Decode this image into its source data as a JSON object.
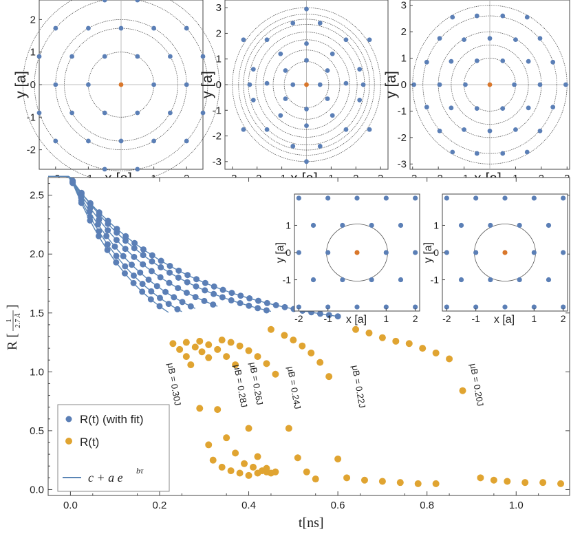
{
  "colors": {
    "blue": "#5b7fb6",
    "orange": "#e0a431",
    "red": "#d9772b",
    "circle": "#555555",
    "frame": "#444444",
    "axis": "#aaaaaa",
    "line": "#5a85b5"
  },
  "chart_data": [
    {
      "id": "top1",
      "type": "scatter",
      "xlabel": "x [a]",
      "ylabel": "y [a]",
      "xlim": [
        -2.5,
        2.5
      ],
      "ylim": [
        -2.6,
        2.6
      ],
      "xticks": [
        "-2",
        "-1",
        "1",
        "2"
      ],
      "yticks": [
        "2",
        "1",
        "0",
        "-1",
        "-2"
      ],
      "xtick_values": [
        -2,
        -1,
        1,
        2
      ],
      "ytick_values": [
        2,
        1,
        0,
        -1,
        -2
      ],
      "rings": [
        1,
        1.732,
        2,
        2.646,
        3
      ],
      "points": [
        [
          0,
          0
        ],
        [
          1,
          0
        ],
        [
          0.5,
          0.866
        ],
        [
          -0.5,
          0.866
        ],
        [
          -1,
          0
        ],
        [
          -0.5,
          -0.866
        ],
        [
          0.5,
          -0.866
        ],
        [
          1.5,
          0.866
        ],
        [
          0,
          1.732
        ],
        [
          -1.5,
          0.866
        ],
        [
          -1.5,
          -0.866
        ],
        [
          0,
          -1.732
        ],
        [
          1.5,
          -0.866
        ],
        [
          2,
          0
        ],
        [
          1,
          1.732
        ],
        [
          -1,
          1.732
        ],
        [
          -2,
          0
        ],
        [
          -1,
          -1.732
        ],
        [
          1,
          -1.732
        ],
        [
          2.5,
          0.866
        ],
        [
          2,
          1.732
        ],
        [
          0.5,
          2.598
        ],
        [
          -0.5,
          2.598
        ],
        [
          -2,
          1.732
        ],
        [
          -2.5,
          0.866
        ],
        [
          -2.5,
          -0.866
        ],
        [
          -2,
          -1.732
        ],
        [
          -0.5,
          -2.598
        ],
        [
          0.5,
          -2.598
        ],
        [
          2,
          -1.732
        ],
        [
          2.5,
          -0.866
        ]
      ]
    },
    {
      "id": "top2",
      "type": "scatter",
      "xlabel": "x [a]",
      "ylabel": "y [a]",
      "xlim": [
        -3.3,
        3.3
      ],
      "ylim": [
        -3.3,
        3.3
      ],
      "xticks": [
        "-3",
        "-2",
        "-1",
        "1",
        "2",
        "3"
      ],
      "yticks": [
        "3",
        "2",
        "1",
        "0",
        "-1",
        "-2",
        "-3"
      ],
      "xtick_values": [
        -3,
        -2,
        -1,
        1,
        2,
        3
      ],
      "ytick_values": [
        3,
        2,
        1,
        0,
        -1,
        -2,
        -3
      ],
      "rings": [
        0.9,
        1.35,
        1.75,
        2.05,
        2.35,
        2.55,
        2.75,
        3.0
      ],
      "points": [
        [
          0,
          0
        ],
        [
          0.55,
          0
        ],
        [
          -0.55,
          0
        ],
        [
          0.85,
          0.55
        ],
        [
          0,
          0.95
        ],
        [
          -0.85,
          0.55
        ],
        [
          -0.85,
          -0.55
        ],
        [
          0,
          -0.95
        ],
        [
          0.85,
          -0.55
        ],
        [
          1.6,
          0.05
        ],
        [
          1.05,
          1.2
        ],
        [
          0,
          1.6
        ],
        [
          -1.05,
          1.2
        ],
        [
          -1.6,
          0.05
        ],
        [
          -1.05,
          -1.2
        ],
        [
          0,
          -1.6
        ],
        [
          1.05,
          -1.2
        ],
        [
          2.15,
          0.6
        ],
        [
          1.6,
          1.75
        ],
        [
          0.55,
          2.4
        ],
        [
          -0.55,
          2.4
        ],
        [
          -1.6,
          1.75
        ],
        [
          -2.15,
          0.6
        ],
        [
          -2.15,
          -0.6
        ],
        [
          -1.6,
          -1.75
        ],
        [
          -0.55,
          -2.4
        ],
        [
          0.55,
          -2.4
        ],
        [
          1.6,
          -1.75
        ],
        [
          2.15,
          -0.6
        ],
        [
          2.55,
          1.75
        ],
        [
          0,
          2.95
        ],
        [
          -2.55,
          1.75
        ],
        [
          -2.55,
          -1.75
        ],
        [
          0,
          -3.0
        ],
        [
          2.55,
          -1.75
        ],
        [
          2.3,
          0
        ],
        [
          -2.3,
          0
        ]
      ]
    },
    {
      "id": "top3",
      "type": "scatter",
      "xlabel": "x [a]",
      "ylabel": "y [a]",
      "xlim": [
        -3.1,
        3.1
      ],
      "ylim": [
        -3.2,
        3.2
      ],
      "xticks": [
        "-3",
        "-2",
        "-1",
        "1",
        "2",
        "3"
      ],
      "yticks": [
        "3",
        "2",
        "1",
        "0",
        "-1",
        "-2",
        "-3"
      ],
      "xtick_values": [
        -3,
        -2,
        -1,
        1,
        2,
        3
      ],
      "ytick_values": [
        3,
        2,
        1,
        0,
        -1,
        -2,
        -3
      ],
      "rings": [
        1,
        1.5,
        2.0,
        2.6,
        3.0
      ],
      "points": [
        [
          0,
          0
        ],
        [
          0.95,
          0
        ],
        [
          -0.95,
          0
        ],
        [
          0.5,
          0.9
        ],
        [
          -0.5,
          0.9
        ],
        [
          0.5,
          -0.9
        ],
        [
          -0.5,
          -0.9
        ],
        [
          1.95,
          0
        ],
        [
          -1.95,
          0
        ],
        [
          1.5,
          0.88
        ],
        [
          0,
          1.75
        ],
        [
          -1.5,
          0.88
        ],
        [
          -1.5,
          -0.88
        ],
        [
          0,
          -1.75
        ],
        [
          1.5,
          -0.88
        ],
        [
          1,
          1.7
        ],
        [
          -1,
          1.7
        ],
        [
          1,
          -1.7
        ],
        [
          -1,
          -1.7
        ],
        [
          2.45,
          0.85
        ],
        [
          1.95,
          1.75
        ],
        [
          0.5,
          2.6
        ],
        [
          -0.5,
          2.6
        ],
        [
          -1.95,
          1.75
        ],
        [
          -2.45,
          0.85
        ],
        [
          -2.45,
          -0.85
        ],
        [
          -1.95,
          -1.75
        ],
        [
          -0.5,
          -2.6
        ],
        [
          0.5,
          -2.6
        ],
        [
          1.95,
          -1.75
        ],
        [
          2.45,
          -0.85
        ],
        [
          2.95,
          0
        ],
        [
          -2.95,
          0
        ],
        [
          1.45,
          2.55
        ],
        [
          -1.45,
          2.55
        ],
        [
          1.45,
          -2.55
        ],
        [
          -1.45,
          -2.55
        ]
      ]
    },
    {
      "id": "main",
      "type": "scatter",
      "xlabel": "t[ns]",
      "ylabel": "R [1 / 2.7 Å]",
      "ylabel_main": "R",
      "ylabel_num": "1",
      "ylabel_den": "2.7 Å",
      "xlim": [
        -0.05,
        1.12
      ],
      "ylim": [
        -0.05,
        2.65
      ],
      "xticks": [
        "0.0",
        "0.2",
        "0.4",
        "0.6",
        "0.8",
        "1.0"
      ],
      "xtick_values": [
        0,
        0.2,
        0.4,
        0.6,
        0.8,
        1.0
      ],
      "yticks": [
        "0.0",
        "0.5",
        "1.0",
        "1.5",
        "2.0",
        "2.5"
      ],
      "ytick_values": [
        0,
        0.5,
        1.0,
        1.5,
        2.0,
        2.5
      ],
      "legend": {
        "blue": "R(t) (with fit)",
        "orange": "R(t)",
        "line": "c + a e",
        "line_sup": "bτ"
      },
      "series": [
        {
          "name": "μB = 0.30J",
          "fit": {
            "c": 1.1,
            "a": 1.55,
            "b": -6.1
          },
          "t_blue_end": 0.2,
          "t_fit_end": 0.22,
          "orange": [
            [
              0.23,
              1.24
            ],
            [
              0.245,
              1.19
            ],
            [
              0.26,
              1.13
            ],
            [
              0.27,
              1.06
            ],
            [
              0.29,
              0.69
            ],
            [
              0.31,
              0.38
            ],
            [
              0.32,
              0.25
            ],
            [
              0.34,
              0.19
            ],
            [
              0.36,
              0.16
            ],
            [
              0.38,
              0.14
            ],
            [
              0.4,
              0.12
            ],
            [
              0.42,
              0.14
            ],
            [
              0.44,
              0.15
            ]
          ]
        },
        {
          "name": "μB = 0.28J",
          "fit": {
            "c": 1.15,
            "a": 1.5,
            "b": -5.7
          },
          "t_blue_end": 0.24,
          "t_fit_end": 0.25,
          "orange": [
            [
              0.26,
              1.25
            ],
            [
              0.28,
              1.21
            ],
            [
              0.295,
              1.17
            ],
            [
              0.31,
              1.12
            ],
            [
              0.33,
              0.68
            ],
            [
              0.35,
              0.44
            ],
            [
              0.37,
              0.31
            ],
            [
              0.39,
              0.22
            ],
            [
              0.41,
              0.19
            ],
            [
              0.43,
              0.16
            ],
            [
              0.45,
              0.14
            ]
          ]
        },
        {
          "name": "μB = 0.26J",
          "fit": {
            "c": 1.2,
            "a": 1.45,
            "b": -5.2
          },
          "t_blue_end": 0.27,
          "t_fit_end": 0.28,
          "orange": [
            [
              0.29,
              1.26
            ],
            [
              0.31,
              1.23
            ],
            [
              0.33,
              1.19
            ],
            [
              0.35,
              1.13
            ],
            [
              0.37,
              1.06
            ],
            [
              0.4,
              0.52
            ],
            [
              0.42,
              0.28
            ],
            [
              0.44,
              0.18
            ],
            [
              0.46,
              0.15
            ]
          ]
        },
        {
          "name": "μB = 0.24J",
          "fit": {
            "c": 1.25,
            "a": 1.4,
            "b": -4.6
          },
          "t_blue_end": 0.32,
          "t_fit_end": 0.33,
          "orange": [
            [
              0.34,
              1.27
            ],
            [
              0.36,
              1.25
            ],
            [
              0.38,
              1.22
            ],
            [
              0.4,
              1.18
            ],
            [
              0.42,
              1.13
            ],
            [
              0.44,
              1.07
            ],
            [
              0.46,
              0.98
            ],
            [
              0.49,
              0.52
            ],
            [
              0.51,
              0.27
            ],
            [
              0.53,
              0.15
            ],
            [
              0.55,
              0.09
            ]
          ]
        },
        {
          "name": "μB = 0.22J",
          "fit": {
            "c": 1.3,
            "a": 1.35,
            "b": -4.1
          },
          "t_blue_end": 0.44,
          "t_fit_end": 0.45,
          "orange": [
            [
              0.45,
              1.36
            ],
            [
              0.48,
              1.31
            ],
            [
              0.5,
              1.27
            ],
            [
              0.52,
              1.22
            ],
            [
              0.54,
              1.16
            ],
            [
              0.56,
              1.08
            ],
            [
              0.58,
              0.96
            ],
            [
              0.6,
              0.26
            ],
            [
              0.62,
              0.1
            ],
            [
              0.66,
              0.08
            ],
            [
              0.7,
              0.07
            ],
            [
              0.74,
              0.06
            ],
            [
              0.78,
              0.05
            ],
            [
              0.82,
              0.05
            ]
          ]
        },
        {
          "name": "μB = 0.20J",
          "fit": {
            "c": 1.33,
            "a": 1.3,
            "b": -3.7
          },
          "t_blue_end": 0.6,
          "t_fit_end": 0.6,
          "orange": [
            [
              0.64,
              1.36
            ],
            [
              0.67,
              1.33
            ],
            [
              0.7,
              1.29
            ],
            [
              0.73,
              1.26
            ],
            [
              0.76,
              1.24
            ],
            [
              0.79,
              1.2
            ],
            [
              0.82,
              1.16
            ],
            [
              0.85,
              1.11
            ],
            [
              0.88,
              0.84
            ],
            [
              0.92,
              0.1
            ],
            [
              0.95,
              0.08
            ],
            [
              0.98,
              0.07
            ],
            [
              1.02,
              0.06
            ],
            [
              1.06,
              0.06
            ],
            [
              1.1,
              0.05
            ]
          ]
        }
      ]
    },
    {
      "id": "inset1",
      "type": "scatter",
      "xlabel": "x [a]",
      "ylabel": "y [a]",
      "xlim": [
        -2.15,
        2.15
      ],
      "ylim": [
        -2.15,
        2.15
      ],
      "xticks": [
        "-2",
        "-1",
        "1",
        "2"
      ],
      "xtick_values": [
        -2,
        -1,
        1,
        2
      ],
      "yticks": [
        "1",
        "0",
        "-1"
      ],
      "ytick_values": [
        1,
        0,
        -1
      ],
      "rings": [
        1.05
      ],
      "center": [
        0,
        0
      ],
      "points": [
        [
          -2,
          2
        ],
        [
          -1,
          2
        ],
        [
          0,
          2
        ],
        [
          1,
          2
        ],
        [
          2,
          2
        ],
        [
          -1.5,
          1
        ],
        [
          -0.5,
          1
        ],
        [
          0.5,
          1
        ],
        [
          1.5,
          1
        ],
        [
          -2,
          0
        ],
        [
          -1,
          0
        ],
        [
          1,
          0
        ],
        [
          2,
          0
        ],
        [
          -1.5,
          -1
        ],
        [
          -0.5,
          -1
        ],
        [
          0.5,
          -1
        ],
        [
          1.5,
          -1
        ],
        [
          -2,
          -2
        ],
        [
          -1,
          -2
        ],
        [
          0,
          -2
        ],
        [
          1,
          -2
        ],
        [
          2,
          -2
        ]
      ]
    },
    {
      "id": "inset2",
      "type": "scatter",
      "xlabel": "x [a]",
      "ylabel": "y [a]",
      "xlim": [
        -2.15,
        2.15
      ],
      "ylim": [
        -2.15,
        2.15
      ],
      "xticks": [
        "-2",
        "-1",
        "1",
        "2"
      ],
      "xtick_values": [
        -2,
        -1,
        1,
        2
      ],
      "yticks": [
        "1",
        "0",
        "-1"
      ],
      "ytick_values": [
        1,
        0,
        -1
      ],
      "rings": [
        1.05
      ],
      "center": [
        0,
        0
      ],
      "points": [
        [
          -2,
          2
        ],
        [
          -1,
          2
        ],
        [
          0,
          2
        ],
        [
          1,
          2
        ],
        [
          2,
          2
        ],
        [
          -1.5,
          1
        ],
        [
          -0.5,
          1
        ],
        [
          0.5,
          1
        ],
        [
          1.5,
          1
        ],
        [
          -2,
          0
        ],
        [
          -1,
          0
        ],
        [
          1,
          0
        ],
        [
          2,
          0
        ],
        [
          -1.5,
          -1
        ],
        [
          -0.5,
          -1
        ],
        [
          0.5,
          -1
        ],
        [
          1.5,
          -1
        ],
        [
          -2,
          -2
        ],
        [
          -1,
          -2
        ],
        [
          0,
          -2
        ],
        [
          1,
          -2
        ],
        [
          2,
          -2
        ]
      ]
    }
  ]
}
